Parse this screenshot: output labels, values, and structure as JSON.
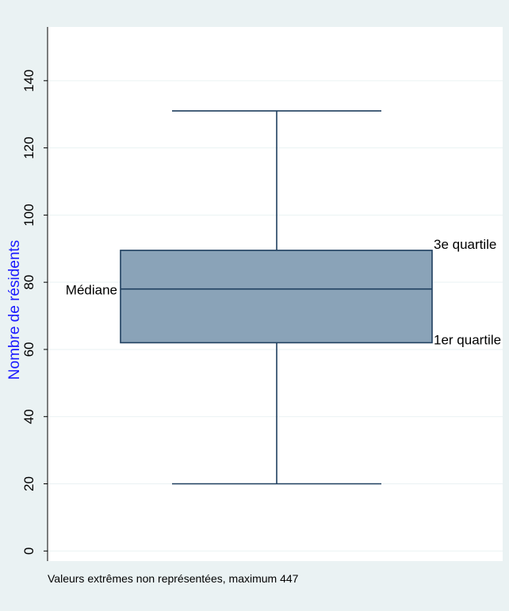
{
  "chart_data": {
    "type": "box",
    "ylabel": "Nombre de résidents",
    "ylim": [
      -3,
      156
    ],
    "yticks": [
      0,
      20,
      40,
      60,
      80,
      100,
      120,
      140
    ],
    "grid": true,
    "box": {
      "whisker_low": 20,
      "q1": 62,
      "median": 78,
      "q3": 89.5,
      "whisker_high": 131
    },
    "annotations": {
      "median": "Médiane",
      "q3": "3e quartile",
      "q1": "1er quartile"
    },
    "note": "Valeurs extrêmes non représentées, maximum 447"
  },
  "colors": {
    "background": "#eaf2f3",
    "plot_background": "#ffffff",
    "box_fill": "#8aa3b8",
    "box_stroke": "#1f3f5f",
    "gridline": "#eaf2f3",
    "ylabel": "#1a1aff",
    "text": "#000000"
  }
}
